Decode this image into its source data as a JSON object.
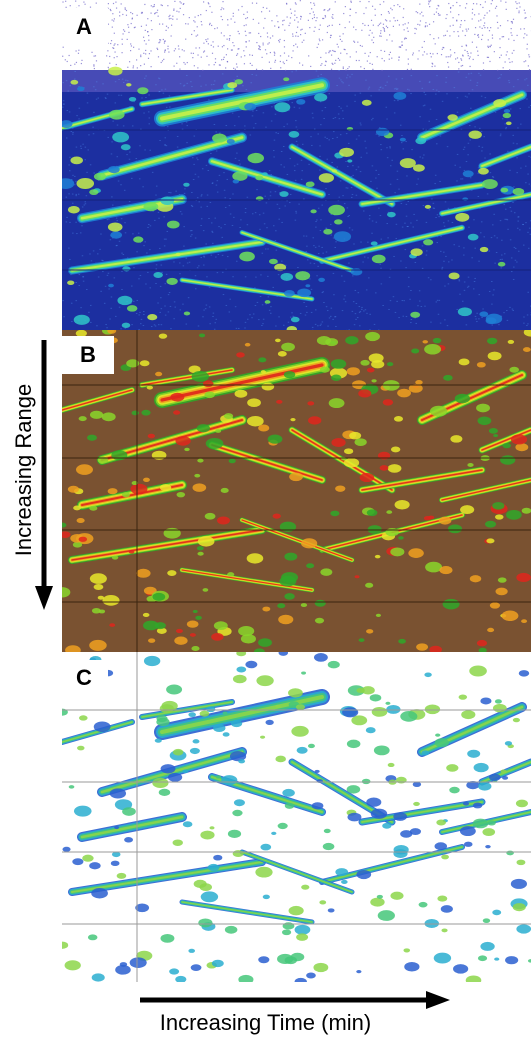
{
  "panels": {
    "a": {
      "label": "A",
      "background": "#1c2fa0",
      "echo_colors": [
        "#1e7fd6",
        "#2fc6c8",
        "#6ee05c",
        "#c8f04a"
      ],
      "noise_color": "#6c62c8"
    },
    "b": {
      "label": "B",
      "background": "#7a5231",
      "echo_colors": [
        "#2fa829",
        "#8ad62a",
        "#e9e92a",
        "#f0a020",
        "#e0261c"
      ]
    },
    "c": {
      "label": "C",
      "background": "#ffffff",
      "echo_colors": [
        "#2a5fd0",
        "#2aaed0",
        "#45c77a",
        "#8cd64a"
      ]
    }
  },
  "axes": {
    "range_label": "Increasing Range",
    "time_label": "Increasing Time (min)"
  }
}
